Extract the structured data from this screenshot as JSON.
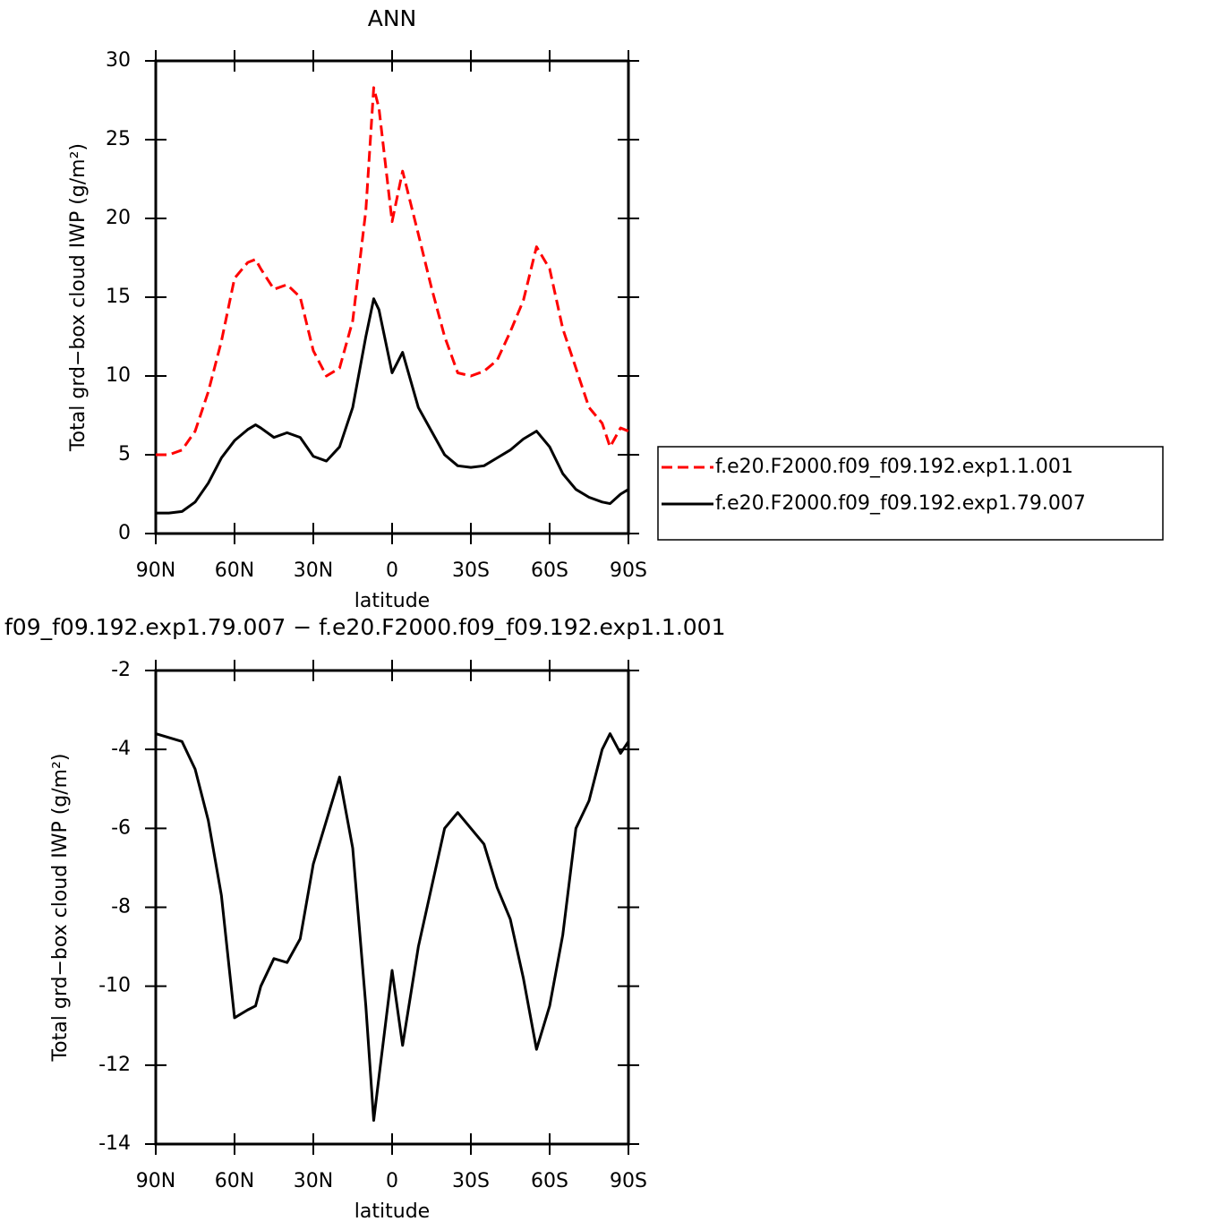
{
  "chart_data": [
    {
      "type": "line",
      "title": "ANN",
      "xlabel": "latitude",
      "ylabel": "Total grd−box cloud IWP (g/m²)",
      "x": [
        90,
        85,
        80,
        75,
        70,
        65,
        60,
        55,
        52,
        50,
        45,
        40,
        35,
        30,
        25,
        20,
        15,
        10,
        7,
        5,
        0,
        -4,
        -10,
        -15,
        -20,
        -25,
        -30,
        -35,
        -40,
        -45,
        -50,
        -55,
        -60,
        -65,
        -70,
        -75,
        -80,
        -83,
        -87,
        -90
      ],
      "series": [
        {
          "name": "f.e20.F2000.f09_f09.192.exp1.1.001",
          "color": "#ff0000",
          "linestyle": "dashed",
          "values": [
            5.0,
            5.0,
            5.3,
            6.5,
            9.0,
            12.2,
            16.2,
            17.2,
            17.4,
            16.8,
            15.5,
            15.8,
            15.0,
            11.6,
            10.0,
            10.5,
            13.5,
            20.5,
            28.3,
            27.0,
            19.8,
            23.0,
            19.0,
            15.6,
            12.5,
            10.2,
            10.0,
            10.3,
            11.0,
            12.8,
            14.8,
            18.2,
            16.8,
            13.0,
            10.5,
            8.0,
            7.0,
            5.5,
            6.7,
            6.5
          ]
        },
        {
          "name": "f.e20.F2000.f09_f09.192.exp1.79.007",
          "color": "#000000",
          "linestyle": "solid",
          "values": [
            1.3,
            1.3,
            1.4,
            2.0,
            3.2,
            4.8,
            5.9,
            6.6,
            6.9,
            6.7,
            6.1,
            6.4,
            6.1,
            4.9,
            4.6,
            5.5,
            8.0,
            12.5,
            14.9,
            14.2,
            10.2,
            11.5,
            8.0,
            6.5,
            5.0,
            4.3,
            4.2,
            4.3,
            4.8,
            5.3,
            6.0,
            6.5,
            5.5,
            3.8,
            2.8,
            2.3,
            2.0,
            1.9,
            2.5,
            2.8
          ]
        }
      ],
      "xlim": [
        90,
        -90
      ],
      "xticks": [
        {
          "value": 90,
          "label": "90N"
        },
        {
          "value": 60,
          "label": "60N"
        },
        {
          "value": 30,
          "label": "30N"
        },
        0,
        {
          "value": -30,
          "label": "30S"
        },
        {
          "value": -60,
          "label": "60S"
        },
        {
          "value": -90,
          "label": "90S"
        }
      ],
      "ylim": [
        0,
        30
      ],
      "yticks": [
        0,
        5,
        10,
        15,
        20,
        25,
        30
      ],
      "legend": "right"
    },
    {
      "type": "line",
      "title": "f09_f09.192.exp1.79.007 − f.e20.F2000.f09_f09.192.exp1.1.001",
      "xlabel": "latitude",
      "ylabel": "Total grd−box cloud IWP (g/m²)",
      "x": [
        90,
        85,
        80,
        75,
        70,
        65,
        60,
        55,
        52,
        50,
        45,
        40,
        35,
        30,
        25,
        20,
        15,
        10,
        7,
        5,
        0,
        -4,
        -10,
        -15,
        -20,
        -25,
        -30,
        -35,
        -40,
        -45,
        -50,
        -55,
        -60,
        -65,
        -70,
        -75,
        -80,
        -83,
        -87,
        -90
      ],
      "series": [
        {
          "color": "#000000",
          "linestyle": "solid",
          "values": [
            -3.6,
            -3.7,
            -3.8,
            -4.5,
            -5.8,
            -7.7,
            -10.8,
            -10.6,
            -10.5,
            -10.0,
            -9.3,
            -9.4,
            -8.8,
            -6.9,
            -5.8,
            -4.7,
            -6.5,
            -10.5,
            -13.4,
            -12.3,
            -9.6,
            -11.5,
            -9.0,
            -7.5,
            -6.0,
            -5.6,
            -6.0,
            -6.4,
            -7.5,
            -8.3,
            -9.8,
            -11.6,
            -10.5,
            -8.7,
            -6.0,
            -5.3,
            -4.0,
            -3.6,
            -4.1,
            -3.8
          ]
        }
      ],
      "xlim": [
        90,
        -90
      ],
      "xticks": [
        {
          "value": 90,
          "label": "90N"
        },
        {
          "value": 60,
          "label": "60N"
        },
        {
          "value": 30,
          "label": "30N"
        },
        0,
        {
          "value": -30,
          "label": "30S"
        },
        {
          "value": -60,
          "label": "60S"
        },
        {
          "value": -90,
          "label": "90S"
        }
      ],
      "ylim": [
        -14,
        -2
      ],
      "yticks": [
        -14,
        -12,
        -10,
        -8,
        -6,
        -4,
        -2
      ]
    }
  ]
}
